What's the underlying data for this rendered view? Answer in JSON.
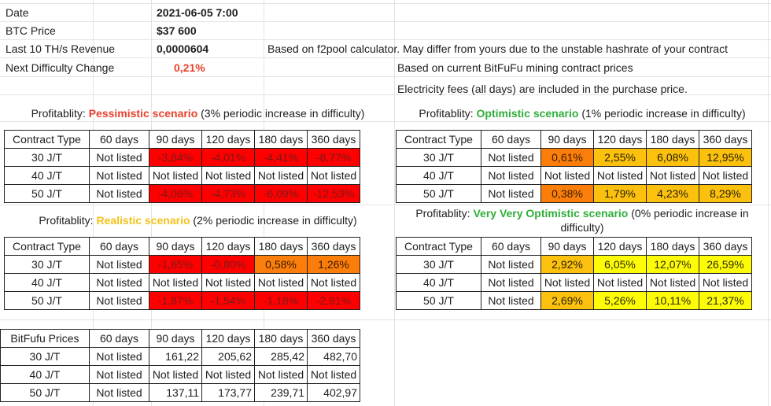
{
  "info": {
    "date_label": "Date",
    "date_value": "2021-06-05 7:00",
    "btc_label": "BTC Price",
    "btc_value": "$37 600",
    "revenue_label": "Last 10 TH/s Revenue",
    "revenue_value": "0,0000604",
    "revenue_note": "Based on f2pool calculator. May differ from yours due to the unstable hashrate of your contract",
    "difficulty_label": "Next Difficulty Change",
    "difficulty_value": "0,21%",
    "prices_note": "Based on current BitFuFu mining contract prices",
    "fees_note": "Electricity fees (all days) are included in the purchase price."
  },
  "colors": {
    "red": "#fe0000",
    "orange": "#fb7e0a",
    "amber": "#fbc10e",
    "yellow": "#fdfb08",
    "red_text": "#e8412c",
    "green_text": "#2fae3a",
    "gold_text": "#f2c21b"
  },
  "scenarios": {
    "pessimistic": {
      "prefix": "Profitablity: ",
      "name": "Pessimistic scenario",
      "suffix": " (3% periodic increase in difficulty)",
      "columns": [
        "Contract Type",
        "60 days",
        "90 days",
        "120 days",
        "180 days",
        "360 days"
      ],
      "rows": [
        {
          "cells": [
            "30 J/T",
            "Not listed",
            "-3,84%",
            "-4,01%",
            "-4,41%",
            "-8,77%"
          ],
          "colors": [
            "",
            "",
            "red",
            "red",
            "red",
            "red"
          ]
        },
        {
          "cells": [
            "40 J/T",
            "Not listed",
            "Not listed",
            "Not listed",
            "Not listed",
            "Not listed"
          ],
          "colors": [
            "",
            "",
            "",
            "",
            "",
            ""
          ]
        },
        {
          "cells": [
            "50 J/T",
            "Not listed",
            "-4,06%",
            "-4,73%",
            "-6,09%",
            "-12,53%"
          ],
          "colors": [
            "",
            "",
            "red",
            "red",
            "red",
            "red"
          ]
        }
      ]
    },
    "optimistic": {
      "prefix": "Profitablity: ",
      "name": "Optimistic scenario",
      "suffix": " (1% periodic increase in difficulty)",
      "columns": [
        "Contract Type",
        "60 days",
        "90 days",
        "120 days",
        "180 days",
        "360 days"
      ],
      "rows": [
        {
          "cells": [
            "30 J/T",
            "Not listed",
            "0,61%",
            "2,55%",
            "6,08%",
            "12,95%"
          ],
          "colors": [
            "",
            "",
            "orange",
            "amber",
            "amber",
            "amber"
          ]
        },
        {
          "cells": [
            "40 J/T",
            "Not listed",
            "Not listed",
            "Not listed",
            "Not listed",
            "Not listed"
          ],
          "colors": [
            "",
            "",
            "",
            "",
            "",
            ""
          ]
        },
        {
          "cells": [
            "50 J/T",
            "Not listed",
            "0,38%",
            "1,79%",
            "4,23%",
            "8,29%"
          ],
          "colors": [
            "",
            "",
            "orange",
            "amber",
            "amber",
            "amber"
          ]
        }
      ]
    },
    "realistic": {
      "prefix": "Profitablity: ",
      "name": "Realistic scenario",
      "suffix": " (2% periodic increase in difficulty)",
      "columns": [
        "Contract Type",
        "60 days",
        "90 days",
        "120 days",
        "180 days",
        "360 days"
      ],
      "rows": [
        {
          "cells": [
            "30 J/T",
            "Not listed",
            "-1,65%",
            "-0,80%",
            "0,58%",
            "1,26%"
          ],
          "colors": [
            "",
            "",
            "red",
            "red",
            "orange",
            "orange"
          ]
        },
        {
          "cells": [
            "40 J/T",
            "Not listed",
            "Not listed",
            "Not listed",
            "Not listed",
            "Not listed"
          ],
          "colors": [
            "",
            "",
            "",
            "",
            "",
            ""
          ]
        },
        {
          "cells": [
            "50 J/T",
            "Not listed",
            "-1,87%",
            "-1,54%",
            "-1,18%",
            "-2,91%"
          ],
          "colors": [
            "",
            "",
            "red",
            "red",
            "red",
            "red"
          ]
        }
      ]
    },
    "very_optimistic": {
      "prefix": "Profitablity: ",
      "name": "Very Very Optimistic scenario",
      "suffix": " (0% periodic increase in",
      "suffix2": "difficulty)",
      "columns": [
        "Contract Type",
        "60 days",
        "90 days",
        "120 days",
        "180 days",
        "360 days"
      ],
      "rows": [
        {
          "cells": [
            "30 J/T",
            "Not listed",
            "2,92%",
            "6,05%",
            "12,07%",
            "26,59%"
          ],
          "colors": [
            "",
            "",
            "amber",
            "yellow",
            "yellow",
            "yellow"
          ]
        },
        {
          "cells": [
            "40 J/T",
            "Not listed",
            "Not listed",
            "Not listed",
            "Not listed",
            "Not listed"
          ],
          "colors": [
            "",
            "",
            "",
            "",
            "",
            ""
          ]
        },
        {
          "cells": [
            "50 J/T",
            "Not listed",
            "2,69%",
            "5,26%",
            "10,11%",
            "21,37%"
          ],
          "colors": [
            "",
            "",
            "amber",
            "yellow",
            "yellow",
            "yellow"
          ]
        }
      ]
    }
  },
  "prices": {
    "columns": [
      "BitFufu Prices",
      "60 days",
      "90 days",
      "120 days",
      "180 days",
      "360 days"
    ],
    "rows": [
      {
        "cells": [
          "30 J/T",
          "Not listed",
          "161,22",
          "205,62",
          "285,42",
          "482,70"
        ],
        "colors": [
          "",
          "",
          "",
          "",
          "",
          ""
        ]
      },
      {
        "cells": [
          "40 J/T",
          "Not listed",
          "Not listed",
          "Not listed",
          "Not listed",
          "Not listed"
        ],
        "colors": [
          "",
          "",
          "",
          "",
          "",
          ""
        ]
      },
      {
        "cells": [
          "50 J/T",
          "Not listed",
          "137,11",
          "173,77",
          "239,71",
          "402,97"
        ],
        "colors": [
          "",
          "",
          "",
          "",
          "",
          ""
        ]
      }
    ]
  }
}
